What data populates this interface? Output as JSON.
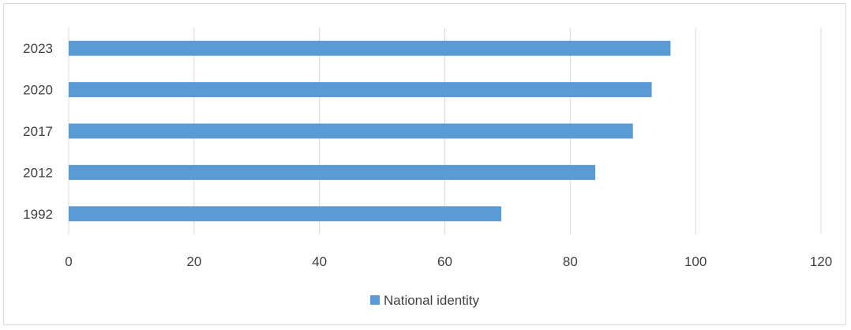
{
  "chart_data": {
    "type": "bar",
    "orientation": "horizontal",
    "categories": [
      "2023",
      "2020",
      "2017",
      "2012",
      "1992"
    ],
    "series": [
      {
        "name": "National identity",
        "values": [
          96,
          93,
          90,
          84,
          69
        ],
        "color": "#5b9bd5"
      }
    ],
    "xlim": [
      0,
      120
    ],
    "x_ticks": [
      "0",
      "20",
      "40",
      "60",
      "80",
      "100",
      "120"
    ],
    "grid": true,
    "legend_position": "bottom"
  }
}
